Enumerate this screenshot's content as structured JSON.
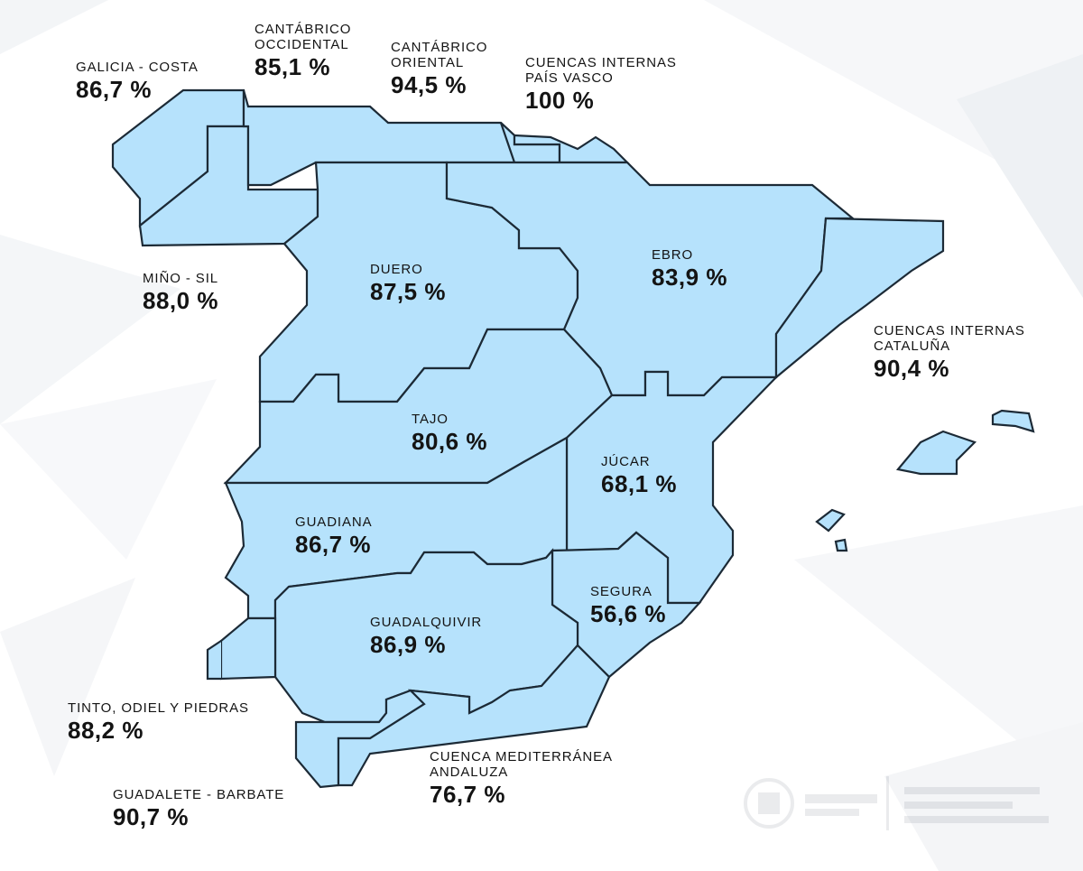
{
  "colors": {
    "basin_fill": "#b6e2fc",
    "basin_stroke": "#1c2a36",
    "text": "#141414"
  },
  "basins": [
    {
      "id": "galicia-costa",
      "name": "GALICIA - COSTA",
      "value": "86,7 %"
    },
    {
      "id": "cantabrico-occidental",
      "name_lines": [
        "CANTÁBRICO",
        "OCCIDENTAL"
      ],
      "value": "85,1 %"
    },
    {
      "id": "cantabrico-oriental",
      "name_lines": [
        "CANTÁBRICO",
        "ORIENTAL"
      ],
      "value": "94,5 %"
    },
    {
      "id": "cuencas-internas-pais-vasco",
      "name_lines": [
        "CUENCAS INTERNAS",
        "PAÍS VASCO"
      ],
      "value": "100 %"
    },
    {
      "id": "mino-sil",
      "name": "MIÑO - SIL",
      "value": "88,0 %"
    },
    {
      "id": "duero",
      "name": "DUERO",
      "value": "87,5 %"
    },
    {
      "id": "ebro",
      "name": "EBRO",
      "value": "83,9 %"
    },
    {
      "id": "cuencas-internas-cataluna",
      "name_lines": [
        "CUENCAS INTERNAS",
        "CATALUÑA"
      ],
      "value": "90,4 %"
    },
    {
      "id": "tajo",
      "name": "TAJO",
      "value": "80,6 %"
    },
    {
      "id": "jucar",
      "name": "JÚCAR",
      "value": "68,1 %"
    },
    {
      "id": "guadiana",
      "name": "GUADIANA",
      "value": "86,7 %"
    },
    {
      "id": "segura",
      "name": "SEGURA",
      "value": "56,6 %"
    },
    {
      "id": "guadalquivir",
      "name": "GUADALQUIVIR",
      "value": "86,9 %"
    },
    {
      "id": "tinto-odiel-piedras",
      "name": "TINTO, ODIEL Y PIEDRAS",
      "value": "88,2 %"
    },
    {
      "id": "cuenca-mediterranea-andaluza",
      "name_lines": [
        "CUENCA MEDITERRÁNEA",
        "ANDALUZA"
      ],
      "value": "76,7 %"
    },
    {
      "id": "guadalete-barbate",
      "name": "GUADALETE - BARBATE",
      "value": "90,7 %"
    }
  ]
}
